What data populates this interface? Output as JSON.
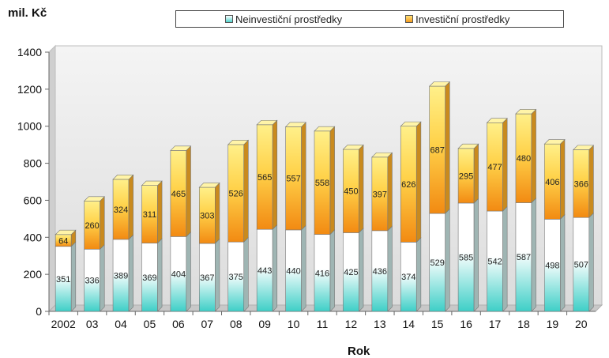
{
  "chart_data": {
    "type": "bar",
    "stacked": true,
    "ylabel": "mil. Kč",
    "xlabel": "Rok",
    "ylim": [
      0,
      1400
    ],
    "yticks": [
      0,
      200,
      400,
      600,
      800,
      1000,
      1200,
      1400
    ],
    "categories": [
      "2002",
      "03",
      "04",
      "05",
      "06",
      "07",
      "08",
      "09",
      "10",
      "11",
      "12",
      "13",
      "14",
      "15",
      "16",
      "17",
      "18",
      "19",
      "20"
    ],
    "series": [
      {
        "name": "Neinvestiční prostředky",
        "values": [
          351,
          336,
          389,
          369,
          404,
          367,
          375,
          443,
          440,
          416,
          425,
          436,
          374,
          529,
          585,
          542,
          587,
          498,
          507
        ]
      },
      {
        "name": "Investiční prostředky",
        "values": [
          64,
          260,
          324,
          311,
          465,
          303,
          526,
          565,
          557,
          558,
          450,
          397,
          626,
          687,
          295,
          477,
          480,
          406,
          366
        ]
      }
    ],
    "legend_position": "top",
    "grid": false,
    "colors": {
      "series1_top": "#ffffff",
      "series1_bottom": "#4fd3cc",
      "series2_top": "#ffe27a",
      "series2_bottom": "#f39a1c",
      "wall": "#e6e6e6"
    }
  }
}
